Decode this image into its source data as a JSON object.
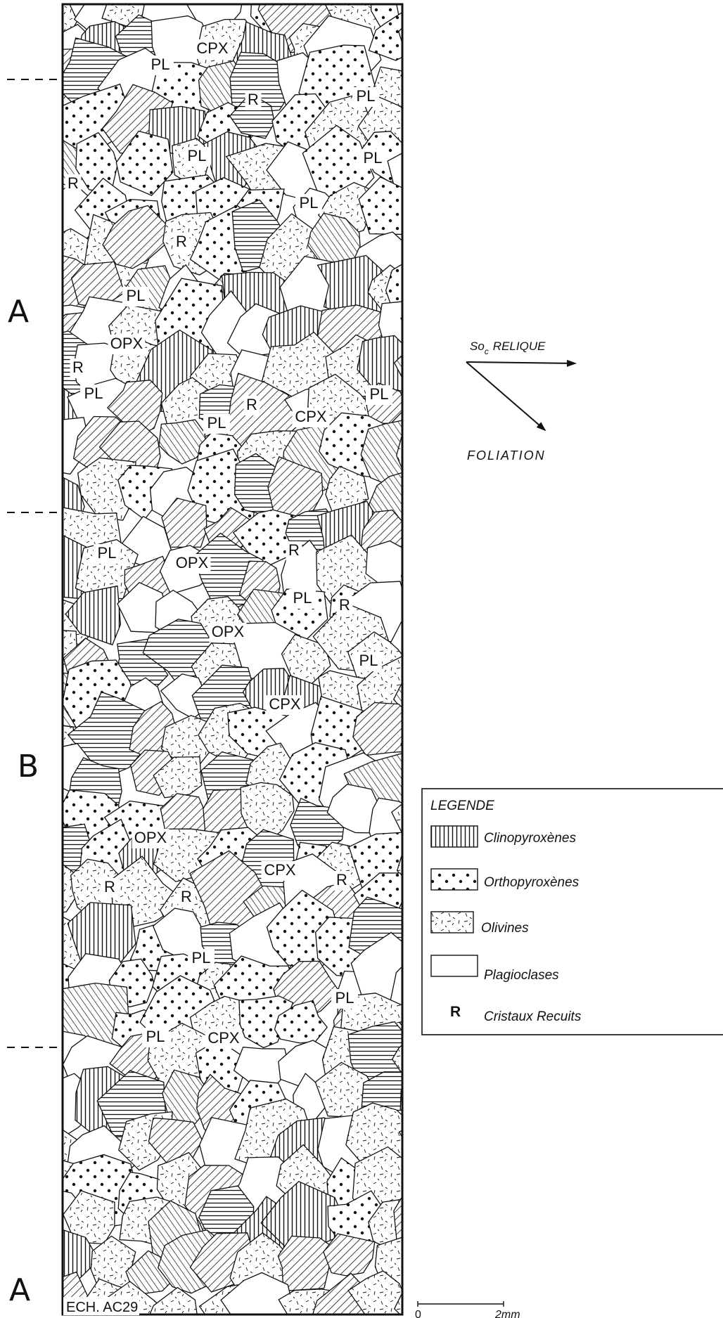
{
  "zones": {
    "top": "A",
    "middle": "B",
    "bottom": "A",
    "upper_a": "A"
  },
  "grain_labels": {
    "pl": "PL",
    "cpx": "CPX",
    "opx": "OPX",
    "r": "R"
  },
  "sample_id": "ECH. AC29",
  "orientation": {
    "so_prefix": "So",
    "so_subscript": "c",
    "relique": "RELIQUE",
    "foliation": "FOLIATION"
  },
  "legend": {
    "title": "LEGENDE",
    "items": [
      {
        "key": "cpx",
        "label": "Clinopyroxènes"
      },
      {
        "key": "opx",
        "label": "Orthopyroxènes"
      },
      {
        "key": "ol",
        "label": "Olivines"
      },
      {
        "key": "pl",
        "label": "Plagioclases"
      },
      {
        "key": "r",
        "label": "Cristaux Recuits",
        "symbol": "R"
      }
    ]
  },
  "scale_bar": {
    "start": "0",
    "end": "2mm"
  },
  "colors": {
    "ink": "#111111",
    "paper": "#ffffff"
  }
}
